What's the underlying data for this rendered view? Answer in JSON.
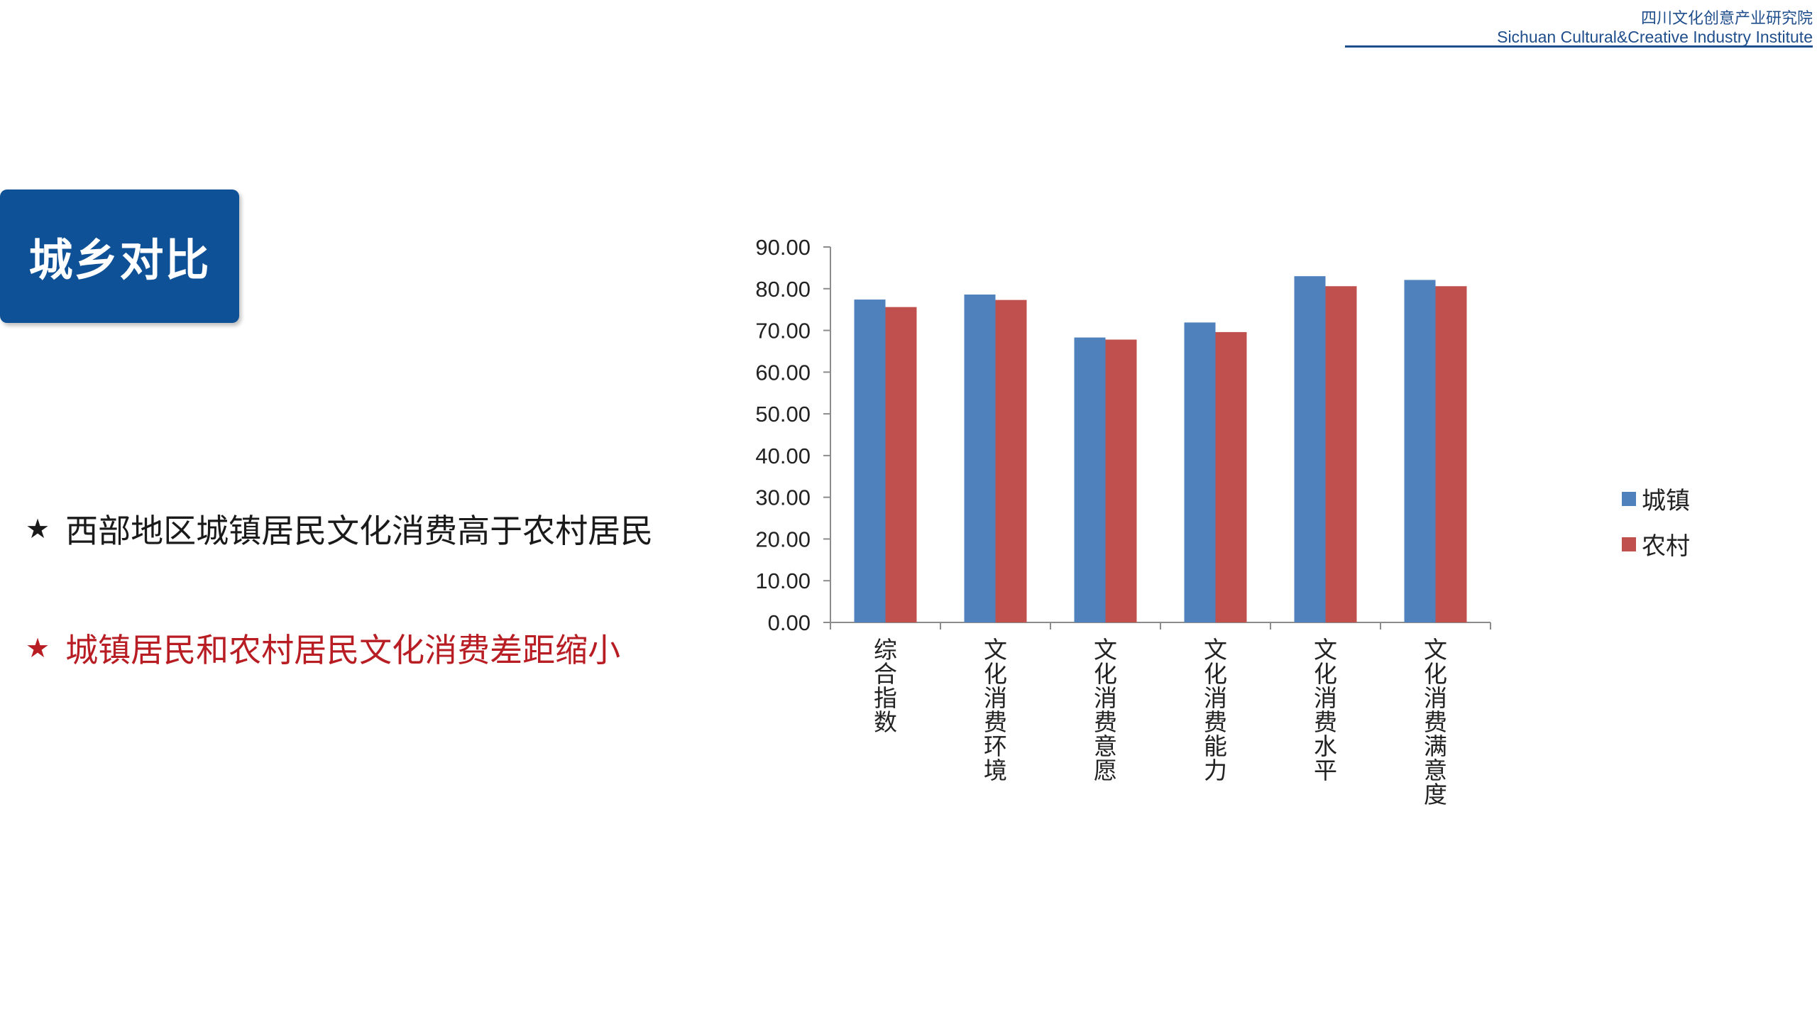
{
  "header": {
    "org_cn": "四川文化创意产业研究院",
    "org_en": "Sichuan Cultural&Creative Industry Institute"
  },
  "title": "城乡对比",
  "bullets": [
    {
      "star": "★",
      "text": "西部地区城镇居民文化消费高于农村居民",
      "color": "#1a1a1a"
    },
    {
      "star": "★",
      "text": "城镇居民和农村居民文化消费差距缩小",
      "color": "#b81d24"
    }
  ],
  "chart_data": {
    "type": "bar",
    "categories": [
      "综合指数",
      "文化消费环境",
      "文化消费意愿",
      "文化消费能力",
      "文化消费水平",
      "文化消费满意度"
    ],
    "series": [
      {
        "name": "城镇",
        "color": "#4f81bd",
        "values": [
          77.4,
          78.6,
          68.3,
          71.9,
          83.0,
          82.1
        ]
      },
      {
        "name": "农村",
        "color": "#c0504d",
        "values": [
          75.6,
          77.3,
          67.8,
          69.6,
          80.6,
          80.6
        ]
      }
    ],
    "yticks": [
      "0.00",
      "10.00",
      "20.00",
      "30.00",
      "40.00",
      "50.00",
      "60.00",
      "70.00",
      "80.00",
      "90.00"
    ],
    "ylim": [
      0,
      90
    ],
    "legend_position": "right",
    "grid": false
  }
}
